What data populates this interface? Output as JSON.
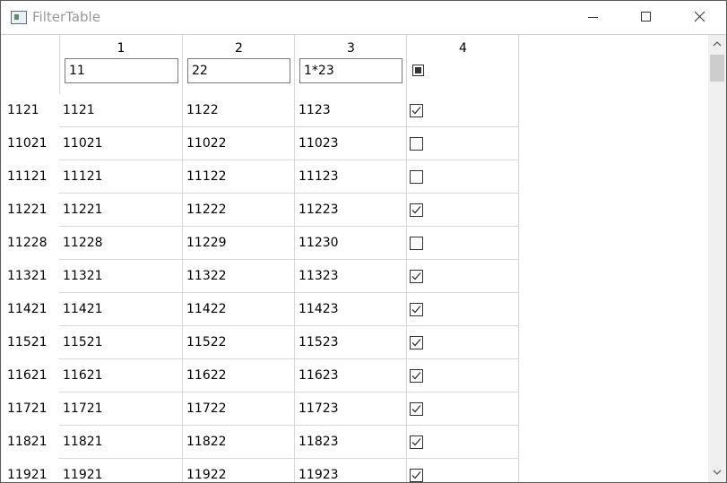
{
  "window": {
    "title": "FilterTable"
  },
  "columns": [
    {
      "header": "1",
      "filter": "11"
    },
    {
      "header": "2",
      "filter": "22"
    },
    {
      "header": "3",
      "filter": "1*23"
    },
    {
      "header": "4",
      "filter_state": "partial"
    }
  ],
  "rows": [
    {
      "label": "1121",
      "c1": "1121",
      "c2": "1122",
      "c3": "1123",
      "checked": true
    },
    {
      "label": "11021",
      "c1": "11021",
      "c2": "11022",
      "c3": "11023",
      "checked": false
    },
    {
      "label": "11121",
      "c1": "11121",
      "c2": "11122",
      "c3": "11123",
      "checked": false
    },
    {
      "label": "11221",
      "c1": "11221",
      "c2": "11222",
      "c3": "11223",
      "checked": true
    },
    {
      "label": "11228",
      "c1": "11228",
      "c2": "11229",
      "c3": "11230",
      "checked": false
    },
    {
      "label": "11321",
      "c1": "11321",
      "c2": "11322",
      "c3": "11323",
      "checked": true
    },
    {
      "label": "11421",
      "c1": "11421",
      "c2": "11422",
      "c3": "11423",
      "checked": true
    },
    {
      "label": "11521",
      "c1": "11521",
      "c2": "11522",
      "c3": "11523",
      "checked": true
    },
    {
      "label": "11621",
      "c1": "11621",
      "c2": "11622",
      "c3": "11623",
      "checked": true
    },
    {
      "label": "11721",
      "c1": "11721",
      "c2": "11722",
      "c3": "11723",
      "checked": true
    },
    {
      "label": "11821",
      "c1": "11821",
      "c2": "11822",
      "c3": "11823",
      "checked": true
    },
    {
      "label": "11921",
      "c1": "11921",
      "c2": "11922",
      "c3": "11923",
      "checked": true
    }
  ],
  "colors": {
    "grid": "#d8d8d8",
    "border": "#7a7a7a",
    "title_text": "#9a9a9a"
  }
}
